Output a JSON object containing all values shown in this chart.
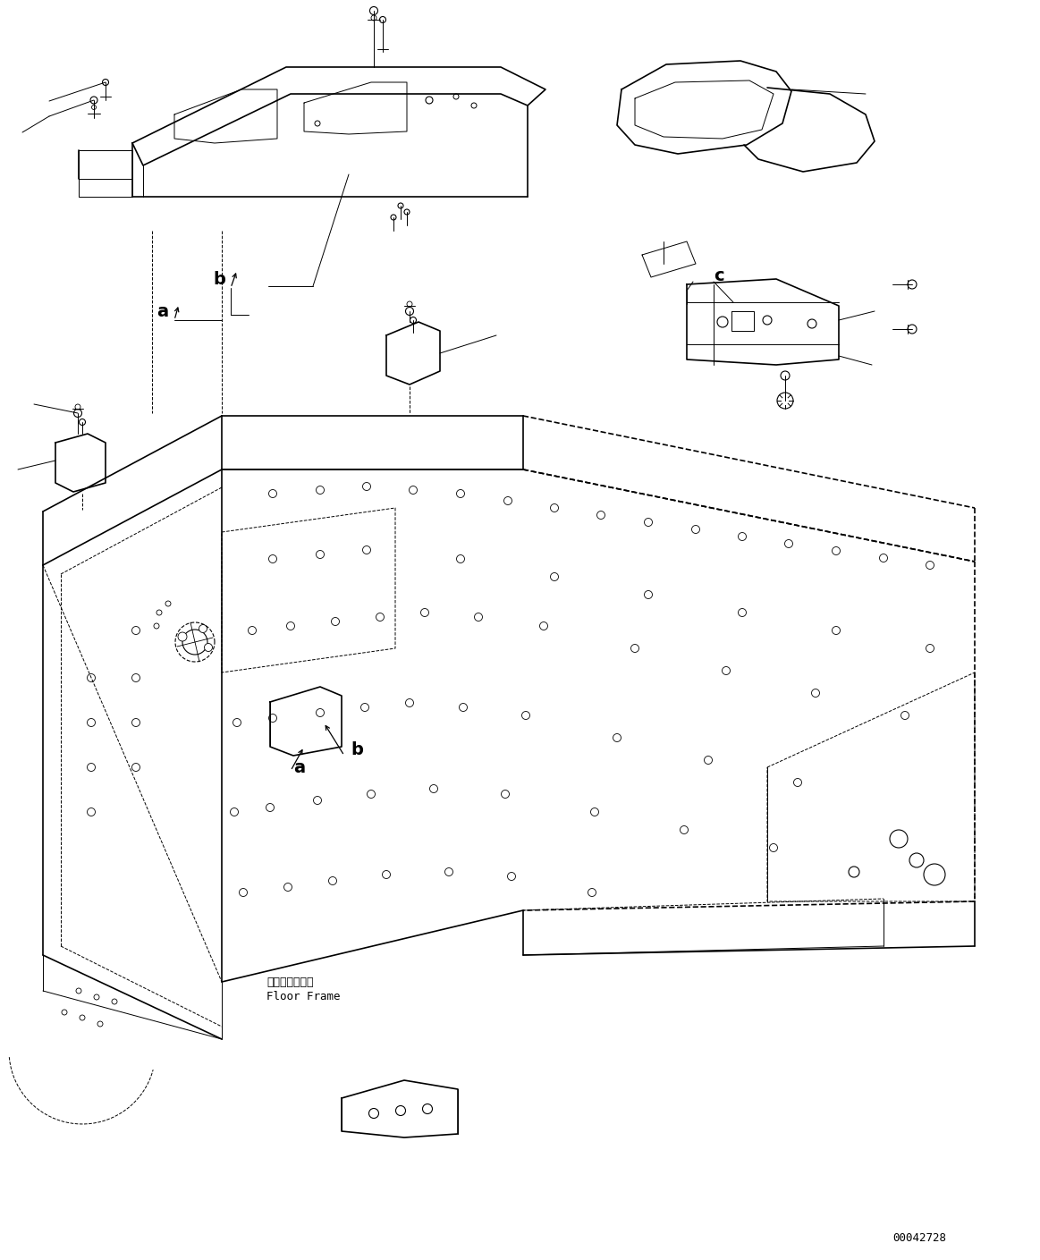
{
  "background_color": "#ffffff",
  "line_color": "#000000",
  "fig_width": 11.63,
  "fig_height": 14.09,
  "dpi": 100,
  "part_id": "00042728",
  "label_floor_frame_jp": "フロアフレーム",
  "label_floor_frame_en": "Floor Frame",
  "annotation_a1": "a",
  "annotation_b1": "b",
  "annotation_a2": "a",
  "annotation_b2": "b",
  "annotation_c": "c"
}
